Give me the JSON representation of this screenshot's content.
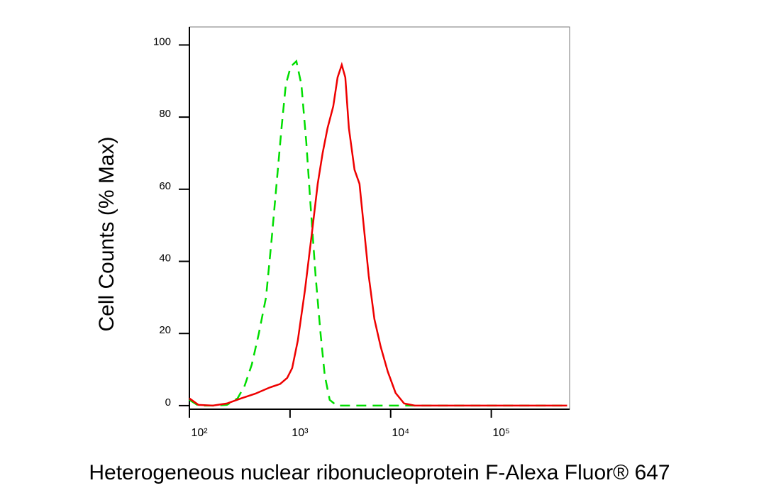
{
  "chart_data": {
    "type": "line",
    "y_label": "Cell Counts (% Max)",
    "x_label": "Heterogeneous nuclear ribonucleoprotein F-Alexa Fluor® 647",
    "log_x": true,
    "xlim": [
      100,
      600000
    ],
    "ylim": [
      -1,
      105
    ],
    "xticks": [
      {
        "value": 100,
        "label": "10²"
      },
      {
        "value": 1000,
        "label": "10³"
      },
      {
        "value": 10000,
        "label": "10⁴"
      },
      {
        "value": 100000,
        "label": "10⁵"
      }
    ],
    "yticks": [
      0,
      20,
      40,
      60,
      80,
      100
    ],
    "series": [
      {
        "color": "#00dd00",
        "dashed": true,
        "x": [
          100,
          123,
          171,
          236,
          301,
          354,
          417,
          490,
          577,
          656,
          735,
          823,
          907,
          1016,
          1156,
          1297,
          1452,
          1600,
          1794,
          2009,
          2213,
          2478,
          2917,
          4375,
          567000
        ],
        "values": [
          1.6,
          0,
          0,
          0.2,
          2,
          5.5,
          11.4,
          20,
          30,
          46,
          61.5,
          77,
          89,
          94,
          95.5,
          89,
          73,
          55.6,
          36,
          20,
          8.4,
          1.6,
          0,
          0,
          0
        ]
      },
      {
        "color": "#ee0000",
        "dashed": false,
        "x": [
          100,
          123,
          171,
          236,
          327,
          452,
          625,
          797,
          937,
          1050,
          1194,
          1406,
          1652,
          1883,
          2109,
          2362,
          2690,
          2966,
          3265,
          3540,
          3843,
          4375,
          4900,
          5395,
          6053,
          6889,
          7967,
          9370,
          11200,
          13600,
          17350,
          49800,
          567000
        ],
        "values": [
          2,
          0.2,
          0,
          0.6,
          2,
          3.3,
          5,
          6,
          7.7,
          10.4,
          18,
          32,
          48,
          61.5,
          70,
          77,
          83,
          91,
          94.5,
          91,
          77,
          65.4,
          61.5,
          50,
          36,
          24,
          16.3,
          9.4,
          3.5,
          0.6,
          0,
          0,
          0
        ]
      }
    ]
  }
}
